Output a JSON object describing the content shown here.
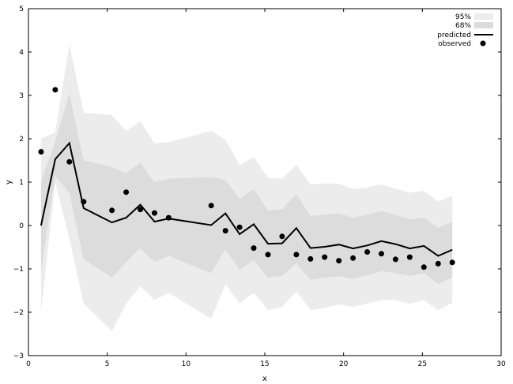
{
  "chart_data": {
    "type": "line",
    "xlabel": "x",
    "ylabel": "y",
    "xlim": [
      0,
      30
    ],
    "ylim": [
      -3,
      5
    ],
    "xticks": [
      "0",
      "5",
      "10",
      "15",
      "20",
      "25",
      "30"
    ],
    "yticks": [
      "−3",
      "−2",
      "−1",
      "0",
      "1",
      "2",
      "3",
      "4",
      "5"
    ],
    "grid": false,
    "legend_position": "top-right",
    "legend": [
      "95%",
      "68%",
      "predicted",
      "observed"
    ],
    "colors": {
      "band95": "#ececec",
      "band68": "#dcdcdc",
      "predicted": "#000000",
      "observed": "#000000"
    },
    "x": [
      0.8,
      1.7,
      2.6,
      3.5,
      5.3,
      6.2,
      7.1,
      8.0,
      8.9,
      11.6,
      12.5,
      13.4,
      14.3,
      15.2,
      16.1,
      17.0,
      17.9,
      18.8,
      19.7,
      20.6,
      21.5,
      22.4,
      23.3,
      24.2,
      25.1,
      26.0,
      26.9
    ],
    "series": [
      {
        "name": "predicted",
        "values": [
          0.0,
          1.53,
          1.9,
          0.4,
          0.07,
          0.18,
          0.48,
          0.09,
          0.16,
          0.01,
          0.28,
          -0.2,
          0.03,
          -0.42,
          -0.41,
          -0.06,
          -0.52,
          -0.49,
          -0.44,
          -0.53,
          -0.46,
          -0.36,
          -0.43,
          -0.53,
          -0.47,
          -0.7,
          -0.56
        ]
      },
      {
        "name": "68%",
        "lower": [
          -1.05,
          1.15,
          0.75,
          -0.78,
          -1.2,
          -0.85,
          -0.52,
          -0.84,
          -0.7,
          -1.1,
          -0.55,
          -1.02,
          -0.8,
          -1.2,
          -1.16,
          -0.87,
          -1.25,
          -1.2,
          -1.17,
          -1.23,
          -1.15,
          -1.05,
          -1.1,
          -1.16,
          -1.1,
          -1.35,
          -1.2
        ],
        "upper": [
          1.0,
          1.95,
          3.05,
          1.5,
          1.35,
          1.2,
          1.45,
          1.0,
          1.08,
          1.12,
          1.05,
          0.62,
          0.84,
          0.35,
          0.38,
          0.72,
          0.22,
          0.25,
          0.28,
          0.18,
          0.25,
          0.33,
          0.25,
          0.14,
          0.18,
          -0.05,
          0.08
        ]
      },
      {
        "name": "95%",
        "lower": [
          -2.0,
          1.0,
          -0.3,
          -1.8,
          -2.43,
          -1.8,
          -1.4,
          -1.72,
          -1.55,
          -2.15,
          -1.35,
          -1.8,
          -1.55,
          -1.95,
          -1.88,
          -1.52,
          -1.95,
          -1.9,
          -1.82,
          -1.88,
          -1.8,
          -1.72,
          -1.72,
          -1.8,
          -1.72,
          -1.95,
          -1.78
        ]
      },
      {
        "name": "95% upper",
        "values": [
          2.0,
          2.15,
          4.18,
          2.6,
          2.55,
          2.18,
          2.4,
          1.9,
          1.92,
          2.18,
          1.98,
          1.4,
          1.58,
          1.1,
          1.08,
          1.4,
          0.95,
          0.97,
          0.97,
          0.84,
          0.88,
          0.95,
          0.85,
          0.76,
          0.8,
          0.55,
          0.69
        ]
      },
      {
        "name": "observed",
        "values": [
          1.7,
          3.13,
          1.47,
          0.55,
          0.35,
          0.77,
          0.37,
          0.29,
          0.18,
          0.46,
          -0.12,
          -0.04,
          -0.52,
          -0.67,
          -0.25,
          -0.67,
          -0.77,
          -0.73,
          -0.81,
          -0.75,
          -0.61,
          -0.65,
          -0.78,
          -0.73,
          -0.96,
          -0.88,
          -0.85
        ]
      }
    ]
  }
}
